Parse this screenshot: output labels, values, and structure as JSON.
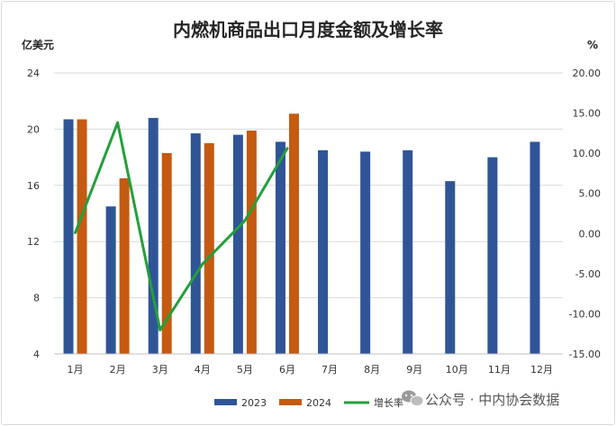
{
  "chart_data": {
    "type": "bar+line",
    "title": "内燃机商品出口月度金额及增长率",
    "ylabel_left": "亿美元",
    "ylabel_right": "%",
    "categories": [
      "1月",
      "2月",
      "3月",
      "4月",
      "5月",
      "6月",
      "7月",
      "8月",
      "9月",
      "10月",
      "11月",
      "12月"
    ],
    "ylim_left": [
      4,
      24
    ],
    "yticks_left": [
      4,
      8,
      12,
      16,
      20,
      24
    ],
    "ylim_right": [
      -15,
      20
    ],
    "yticks_right": [
      "-15.00",
      "-10.00",
      "-5.00",
      "0.00",
      "5.00",
      "10.00",
      "15.00",
      "20.00"
    ],
    "series": [
      {
        "name": "2023",
        "kind": "bar",
        "color": "#2f5597",
        "values": [
          20.7,
          14.5,
          20.8,
          19.7,
          19.6,
          19.1,
          18.5,
          18.4,
          18.5,
          16.3,
          18.0,
          19.1
        ]
      },
      {
        "name": "2024",
        "kind": "bar",
        "color": "#c55a11",
        "values": [
          20.7,
          16.5,
          18.3,
          19.0,
          19.9,
          21.1,
          null,
          null,
          null,
          null,
          null,
          null
        ]
      },
      {
        "name": "增长率",
        "kind": "line",
        "axis": "right",
        "color": "#22a03a",
        "values": [
          0.1,
          13.8,
          -12.0,
          -3.8,
          1.6,
          10.6,
          null,
          null,
          null,
          null,
          null,
          null
        ]
      }
    ]
  },
  "watermark": {
    "text": "公众号 · 中内协会数据",
    "icon": "wechat-icon"
  }
}
